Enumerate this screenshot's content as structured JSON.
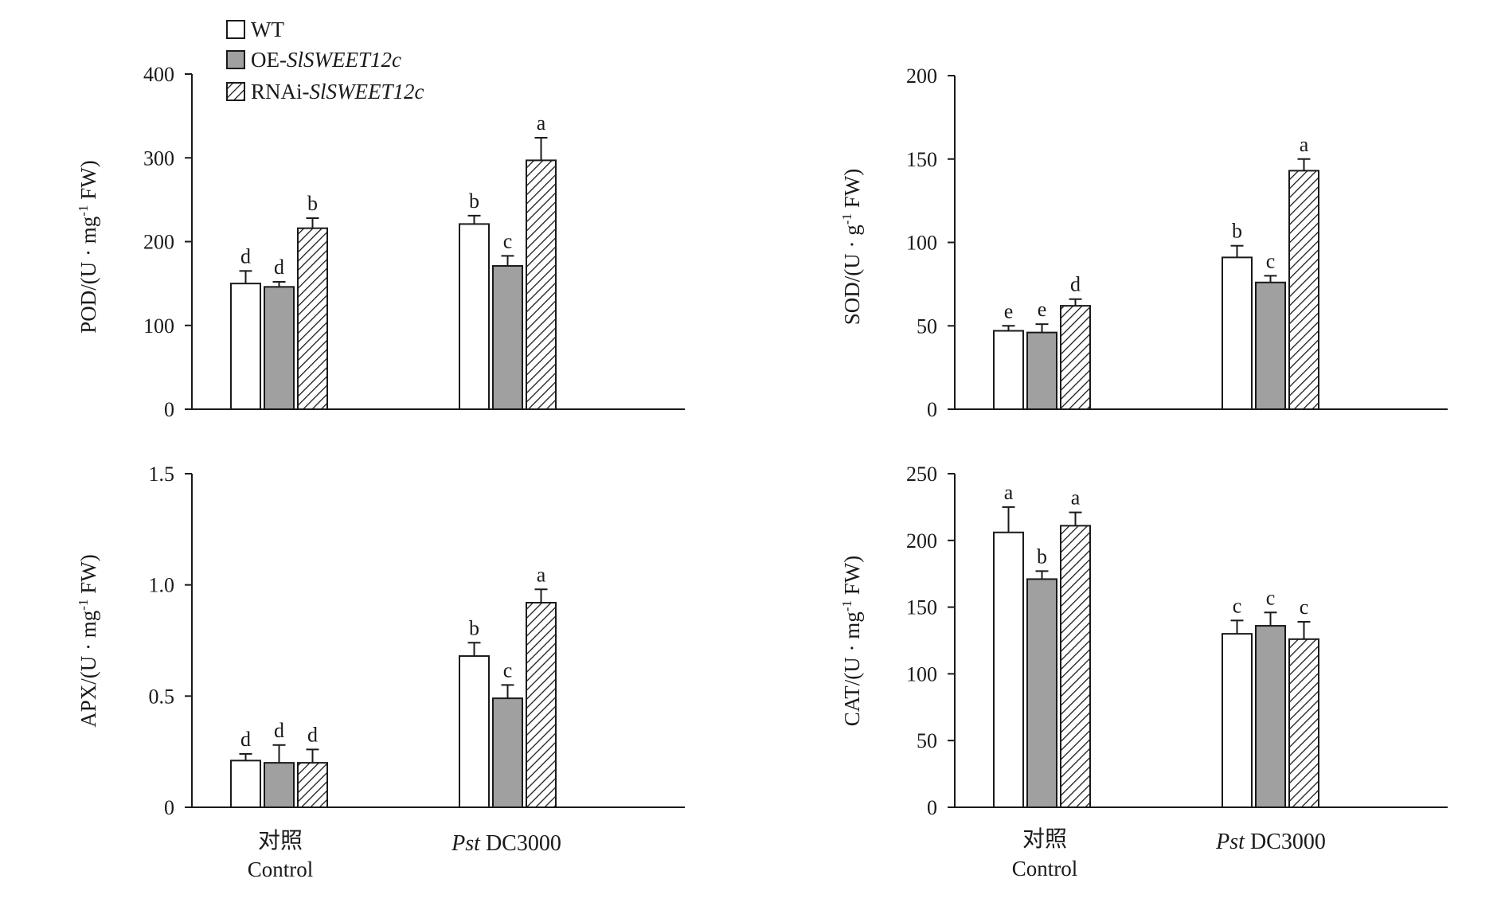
{
  "chart_data": [
    {
      "type": "bar",
      "ylabel": {
        "main": "POD/(U · mg",
        "sup": "-1",
        "tail": " FW)"
      },
      "ylim": [
        0,
        400
      ],
      "yticks": [
        0,
        100,
        200,
        300,
        400
      ],
      "tick_labels": [
        "0",
        "100",
        "200",
        "300",
        "400"
      ],
      "categories": [
        "对照",
        "Pst DC3000"
      ],
      "series": [
        {
          "name": "WT",
          "values": [
            150,
            221
          ],
          "errors": [
            15,
            10
          ],
          "labels": [
            "d",
            "b"
          ]
        },
        {
          "name": "OE-SlSWEET12c",
          "values": [
            146,
            171
          ],
          "errors": [
            6,
            12
          ],
          "labels": [
            "d",
            "c"
          ]
        },
        {
          "name": "RNAi-SlSWEET12c",
          "values": [
            216,
            297
          ],
          "errors": [
            12,
            27
          ],
          "labels": [
            "b",
            "a"
          ]
        }
      ]
    },
    {
      "type": "bar",
      "ylabel": {
        "main": "SOD/(U · g",
        "sup": "-1",
        "tail": " FW)"
      },
      "ylim": [
        0,
        200
      ],
      "yticks": [
        0,
        50,
        100,
        150,
        200
      ],
      "tick_labels": [
        "0",
        "50",
        "100",
        "150",
        "200"
      ],
      "categories": [
        "对照",
        "Pst DC3000"
      ],
      "series": [
        {
          "name": "WT",
          "values": [
            47,
            91
          ],
          "errors": [
            3,
            7
          ],
          "labels": [
            "e",
            "b"
          ]
        },
        {
          "name": "OE-SlSWEET12c",
          "values": [
            46,
            76
          ],
          "errors": [
            5,
            4
          ],
          "labels": [
            "e",
            "c"
          ]
        },
        {
          "name": "RNAi-SlSWEET12c",
          "values": [
            62,
            143
          ],
          "errors": [
            4,
            7
          ],
          "labels": [
            "d",
            "a"
          ]
        }
      ]
    },
    {
      "type": "bar",
      "ylabel": {
        "main": "APX/(U · mg",
        "sup": "-1",
        "tail": " FW)"
      },
      "ylim": [
        0,
        1.5
      ],
      "yticks": [
        0,
        0.5,
        1.0,
        1.5
      ],
      "tick_labels": [
        "0",
        "0.5",
        "1.0",
        "1.5"
      ],
      "categories": [
        "对照",
        "Pst DC3000"
      ],
      "series": [
        {
          "name": "WT",
          "values": [
            0.21,
            0.68
          ],
          "errors": [
            0.03,
            0.06
          ],
          "labels": [
            "d",
            "b"
          ]
        },
        {
          "name": "OE-SlSWEET12c",
          "values": [
            0.2,
            0.49
          ],
          "errors": [
            0.08,
            0.06
          ],
          "labels": [
            "d",
            "c"
          ]
        },
        {
          "name": "RNAi-SlSWEET12c",
          "values": [
            0.2,
            0.92
          ],
          "errors": [
            0.06,
            0.06
          ],
          "labels": [
            "d",
            "a"
          ]
        }
      ]
    },
    {
      "type": "bar",
      "ylabel": {
        "main": "CAT/(U · mg",
        "sup": "-1",
        "tail": " FW)"
      },
      "ylim": [
        0,
        250
      ],
      "yticks": [
        0,
        50,
        100,
        150,
        200,
        250
      ],
      "tick_labels": [
        "0",
        "50",
        "100",
        "150",
        "200",
        "250"
      ],
      "categories": [
        "对照",
        "Pst DC3000"
      ],
      "series": [
        {
          "name": "WT",
          "values": [
            206,
            130
          ],
          "errors": [
            19,
            10
          ],
          "labels": [
            "a",
            "c"
          ]
        },
        {
          "name": "OE-SlSWEET12c",
          "values": [
            171,
            136
          ],
          "errors": [
            6,
            10
          ],
          "labels": [
            "b",
            "c"
          ]
        },
        {
          "name": "RNAi-SlSWEET12c",
          "values": [
            211,
            126
          ],
          "errors": [
            10,
            13
          ],
          "labels": [
            "a",
            "c"
          ]
        }
      ]
    }
  ],
  "x_categories": {
    "control_cn": "对照",
    "control_en": "Control",
    "treatment_italic": "Pst",
    "treatment_rest": " DC3000"
  },
  "legend": [
    {
      "prefix": "WT",
      "italic": "",
      "fill": "white"
    },
    {
      "prefix": "OE-",
      "italic": "SlSWEET12c",
      "fill": "gray"
    },
    {
      "prefix": "RNAi-",
      "italic": "SlSWEET12c",
      "fill": "hatch"
    }
  ],
  "colors": {
    "gray_fill": "#a0a0a0",
    "white_fill": "#ffffff",
    "ink": "#1a1a1a"
  }
}
